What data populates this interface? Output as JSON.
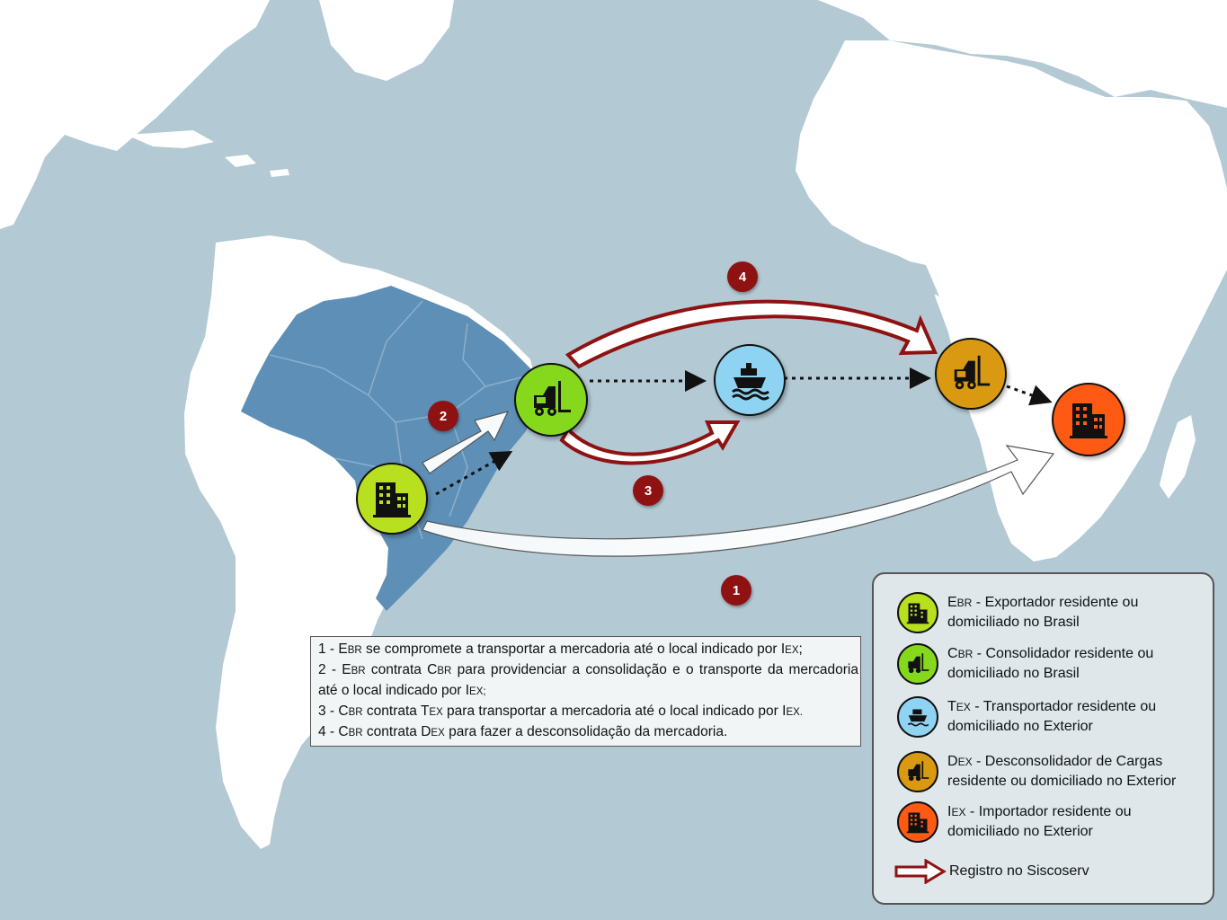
{
  "badges": {
    "one": "1",
    "two": "2",
    "three": "3",
    "four": "4"
  },
  "steps": {
    "s1": {
      "num": "1 - ",
      "e": "E",
      "e_sub": "BR",
      "text": " se compromete a transportar a mercadoria até o local indicado por ",
      "i": "I",
      "i_sub": "EX",
      "end": ";"
    },
    "s2": {
      "num": "2 - ",
      "e": "E",
      "e_sub": "BR",
      "text_a": " contrata ",
      "c": "C",
      "c_sub": "BR",
      "text_b": " para providenciar a consolidação e o transporte da mercadoria até o local indicado por ",
      "i": "I",
      "i_sub": "EX;"
    },
    "s3": {
      "num": "3 - ",
      "c": "C",
      "c_sub": "BR",
      "text_a": " contrata ",
      "t": "T",
      "t_sub": "EX",
      "text_b": " para transportar a mercadoria até o local indicado por ",
      "i": "I",
      "i_sub": "EX."
    },
    "s4": {
      "num": "4 - ",
      "c": "C",
      "c_sub": "BR",
      "text_a": " contrata ",
      "d": "D",
      "d_sub": "EX",
      "text_b": " para fazer a desconsolidação da mercadoria."
    }
  },
  "legend": {
    "ebr": {
      "letter": "E",
      "sub": "BR",
      "text1": " - Exportador residente ou",
      "text2": "domiciliado no Brasil"
    },
    "cbr": {
      "letter": "C",
      "sub": "BR",
      "text1": " - Consolidador residente ou",
      "text2": "domiciliado no Brasil"
    },
    "tex": {
      "letter": "T",
      "sub": "EX",
      "text1": " - Transportador residente ou",
      "text2": "domiciliado no Exterior"
    },
    "dex": {
      "letter": "D",
      "sub": "EX",
      "text1": " - Desconsolidador de Cargas",
      "text2": "residente ou domiciliado no Exterior"
    },
    "iex": {
      "letter": "I",
      "sub": "EX",
      "text1": " - Importador residente ou",
      "text2": "domiciliado no Exterior"
    },
    "registro": "Registro no Siscoserv"
  },
  "colors": {
    "exporter": "#b8e01e",
    "consolidator": "#86d81c",
    "transporter": "#8fd3f2",
    "deconsolidator": "#d99a12",
    "importer": "#ff5a14",
    "registro_arrow": "#8e1212",
    "ocean": "#b3c9d3",
    "land": "#ffffff",
    "brazil": "#5e8fb6"
  },
  "icons": {
    "exporter": "building-icon",
    "consolidator": "forklift-icon",
    "transporter": "ship-icon",
    "deconsolidator": "forklift-icon",
    "importer": "building-icon"
  }
}
